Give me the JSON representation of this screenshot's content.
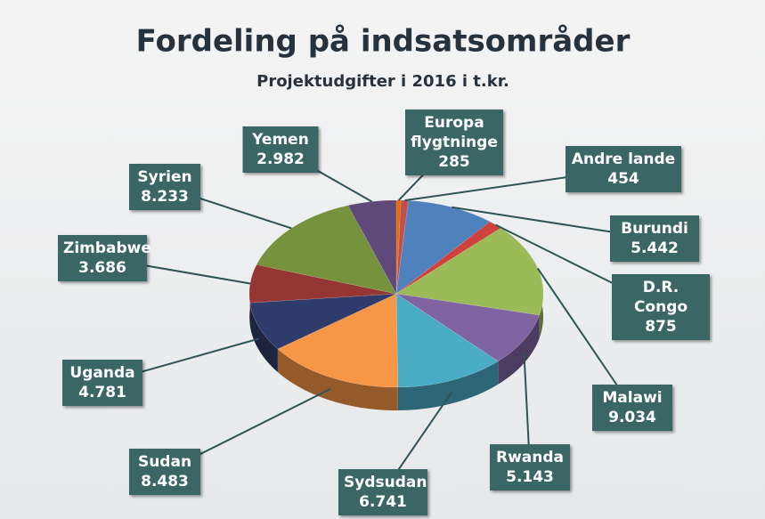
{
  "chart_data": {
    "type": "pie",
    "title": "Fordeling på indsatsområder",
    "subtitle": "Projektudgifter i 2016 i t.kr.",
    "categories": [
      "Europa flygtninge",
      "Andre lande",
      "Burundi",
      "D.R. Congo",
      "Malawi",
      "Rwanda",
      "Sydsudan",
      "Sudan",
      "Uganda",
      "Zimbabwe",
      "Syrien",
      "Yemen"
    ],
    "values": [
      285,
      454,
      5442,
      875,
      9034,
      5143,
      6741,
      8483,
      4781,
      3686,
      8233,
      2982
    ],
    "value_labels": [
      "285",
      "454",
      "5.442",
      "875",
      "9.034",
      "5.143",
      "6.741",
      "8.483",
      "4.781",
      "3.686",
      "8.233",
      "2.982"
    ],
    "colors": [
      "#e46c0a",
      "#c0504d",
      "#4f81bd",
      "#d0403c",
      "#9bbb59",
      "#8064a2",
      "#4bacc6",
      "#f79646",
      "#2f3c6b",
      "#943634",
      "#76923c",
      "#5f497a"
    ]
  }
}
